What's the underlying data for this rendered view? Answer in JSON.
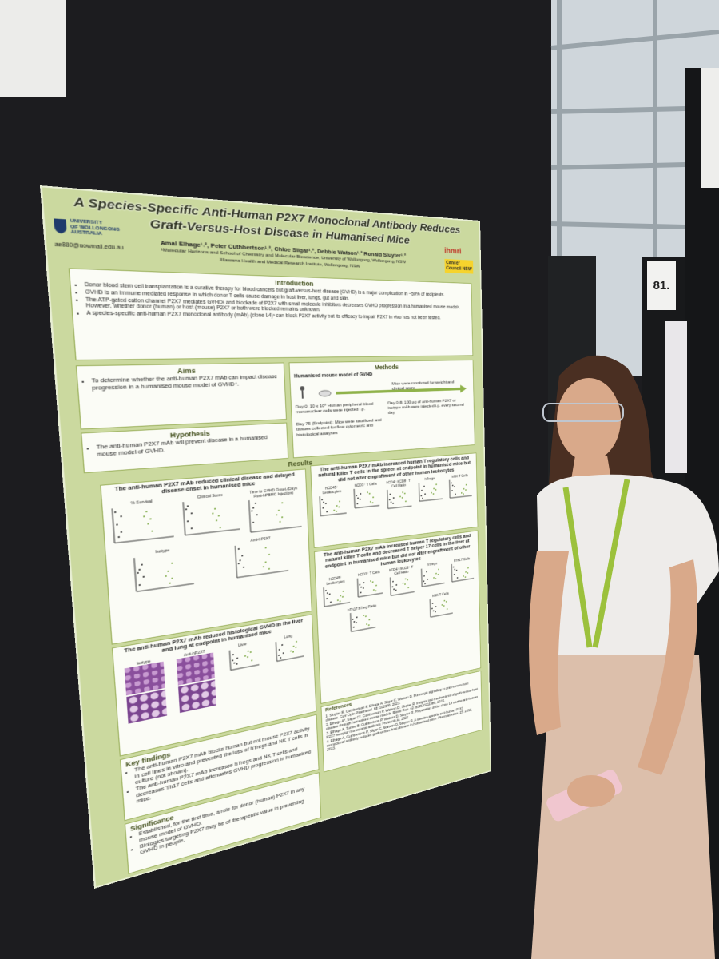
{
  "booth_sign": "81.",
  "poster": {
    "title": [
      "A Species-Specific Anti-Human P2X7 Monoclonal Antibody Reduces",
      "Graft-Versus-Host Disease in Humanised Mice"
    ],
    "university": [
      "UNIVERSITY",
      "OF WOLLONGONG",
      "AUSTRALIA"
    ],
    "authors": "Amal Elhage¹˒², Peter Cuthbertson¹˒², Chloe Sligar¹˒², Debbie Watson¹˒² Ronald Sluyter¹˒²",
    "affiliations": [
      "¹Molecular Horizons and School of Chemistry and Molecular Bioscience, University of Wollongong, Wollongong, NSW",
      "²Illawarra Health and Medical Research Institute, Wollongong, NSW"
    ],
    "email": "ae880@uowmail.edu.au",
    "partner_logos": [
      "ihmri",
      "Cancer Council NSW"
    ],
    "introduction": {
      "heading": "Introduction",
      "bullets": [
        "Donor blood stem cell transplantation is a curative therapy for blood cancers but graft-versus-host disease (GVHD) is a major complication in ~50% of recipients.",
        "GVHD is an immune mediated response in which donor T cells cause damage in host liver, lungs, gut and skin.",
        "The ATP-gated cation channel P2X7 mediates GVHD¹ and blockade of P2X7 with small molecule inhibitors decreases GVHD progression in a humanised mouse model². However, whether donor (human) or host (mouse) P2X7 or both were blocked remains unknown.",
        "A species-specific anti-human P2X7 monoclonal antibody (mAb) (clone L4)³ can block P2X7 activity but its efficacy to impair P2X7 in vivo has not been tested."
      ]
    },
    "aims": {
      "heading": "Aims",
      "text": "To determine whether the anti-human P2X7 mAb can impact disease progression in a humanised mouse model of GVHD⁴."
    },
    "hypothesis": {
      "heading": "Hypothesis",
      "text": "The anti-human P2X7 mAb will prevent disease in a humanised mouse model of GVHD."
    },
    "methods": {
      "heading": "Methods",
      "subheading": "Humanised mouse model of GVHD",
      "monitor": "Mice were monitored for weight and clinical score",
      "steps": [
        "Day 0: 10 x 10⁶ Human peripheral blood mononuclear cells were injected i.p.",
        "Day 0-8: 100 µg of anti-human P2X7 or isotype mAb were injected i.p. every second day",
        "Day 75 (Endpoint): Mice were sacrificed and tissues collected for flow cytometric and histological analyses"
      ]
    },
    "results": {
      "heading": "Results",
      "panels": [
        {
          "title": "The anti-human P2X7 mAb reduced clinical disease and delayed disease onset in humanised mice",
          "labels": [
            "% Survival",
            "Clinical Score",
            "Time to GVHD Onset (Days Post-hPBMC Injection)",
            "Isotype",
            "Anti-hP2X7"
          ]
        },
        {
          "title": "The anti-human P2X7 mAb reduced histological GVHD in the liver and lung at endpoint in humanised mice",
          "labels": [
            "Isotype",
            "Anti-hP2X7",
            "Liver",
            "Lung"
          ]
        },
        {
          "title": "The anti-human P2X7 mAb increased human T regulatory cells and natural killer T cells in the spleen at endpoint in humanised mice but did not alter engraftment of other human leukocytes",
          "labels": [
            "hCD45⁺ Leukocytes",
            "hCD3⁺ T Cells",
            "hCD4⁺:hCD8⁺ T Cell Ratio",
            "hTregs",
            "hNK T Cells"
          ]
        },
        {
          "title": "The anti-human P2X7 mAb increased human T regulatory cells and natural killer T cells and decreased T helper 17 cells in the liver at endpoint in humanised mice but did not alter engraftment of other human leukocytes",
          "labels": [
            "hCD45⁺ Leukocytes",
            "hCD3⁺ T Cells",
            "hCD4⁺:hCD8⁺ T Cell Ratio",
            "hTregs",
            "hTh17 Cells",
            "hTh17:hTreg Ratio",
            "hNK T Cells"
          ]
        }
      ]
    },
    "key_findings": {
      "heading": "Key findings",
      "bullets": [
        "The anti-human P2X7 mAb blocks human but not mouse P2X7 activity in cell lines in vitro and prevented the loss of hTregs and NK T cells in culture (not shown).",
        "The anti-human P2X7 mAb increases hTregs and NK T cells and decreases Th17 cells and attenuates GVHD progression in humanised mice."
      ]
    },
    "significance": {
      "heading": "Significance",
      "bullets": [
        "Established, for the first time, a role for donor (human) P2X7 in any mouse model of GVHD.",
        "Biologics targeting P2X7 may be of therapeutic value in preventing GVHD in people."
      ]
    },
    "references": {
      "heading": "References",
      "items": [
        "1. Sluyter R, Cuthbertson P, Elhage A, Sligar C, Watson D. Purinergic signalling in graft-versus-host disease. Curr Opin Pharmacol. 68: 102346, 2023.",
        "2. Elhage A*, Sligar C*, Cuthbertson P, Watson D, Sluyter R. Insights into mechanisms of graft-versus-host disease through humanised mouse models. Biosci Rep. 42: BSR20211986, 2022.",
        "3. Elhage A, Turner B, Cuthbertson P, Watson D, Sluyter R. Preparation of the clone L4 murine anti-human P2X7 receptor monoclonal antibody. Protocols.io, 2022.",
        "4. Elhage A, Cuthbertson P, Sligar C, Watson D, Sluyter R. A species-specific anti-human P2X7 monoclonal antibody reduces graft-versus-host disease in humanised mice. Pharmaceutics, 15: 2263, 2023."
      ]
    }
  }
}
